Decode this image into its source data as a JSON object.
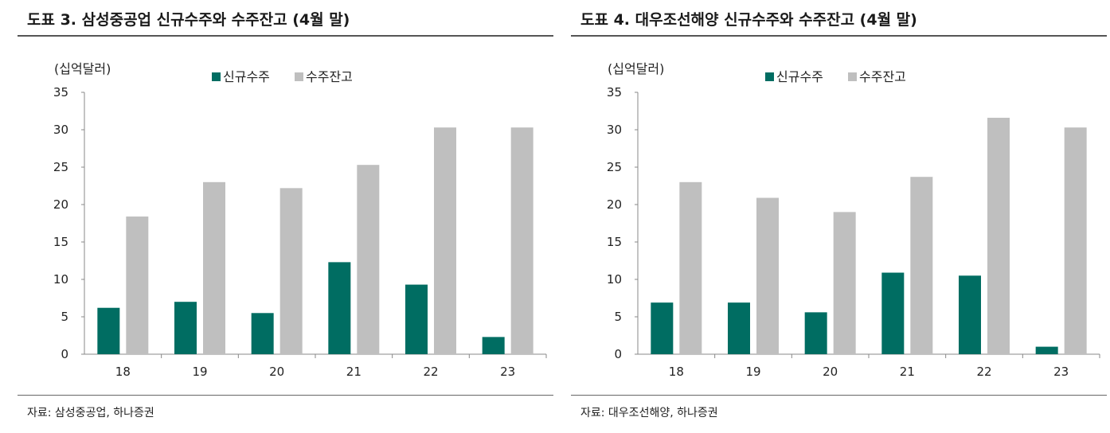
{
  "charts": [
    {
      "title": "도표 3. 삼성중공업 신규수주와 수주잔고 (4월 말)",
      "source": "자료: 삼성중공업, 하나증권",
      "chart_data": {
        "type": "bar",
        "unit_label": "(십억달러)",
        "categories": [
          "18",
          "19",
          "20",
          "21",
          "22",
          "23"
        ],
        "series": [
          {
            "name": "신규수주",
            "color": "#006D62",
            "values": [
              6.2,
              7.0,
              5.5,
              12.3,
              9.3,
              2.3
            ]
          },
          {
            "name": "수주잔고",
            "color": "#BFBFBF",
            "values": [
              18.4,
              23.0,
              22.2,
              25.3,
              30.3,
              30.3
            ]
          }
        ],
        "ylim": [
          0,
          35
        ],
        "yticks": [
          0,
          5,
          10,
          15,
          20,
          25,
          30,
          35
        ],
        "legend": "top"
      }
    },
    {
      "title": "도표 4. 대우조선해양 신규수주와 수주잔고 (4월 말)",
      "source": "자료: 대우조선해양, 하나증권",
      "chart_data": {
        "type": "bar",
        "unit_label": "(십억달러)",
        "categories": [
          "18",
          "19",
          "20",
          "21",
          "22",
          "23"
        ],
        "series": [
          {
            "name": "신규수주",
            "color": "#006D62",
            "values": [
              6.9,
              6.9,
              5.6,
              10.9,
              10.5,
              1.0
            ]
          },
          {
            "name": "수주잔고",
            "color": "#BFBFBF",
            "values": [
              23.0,
              20.9,
              19.0,
              23.7,
              31.6,
              30.3
            ]
          }
        ],
        "ylim": [
          0,
          35
        ],
        "yticks": [
          0,
          5,
          10,
          15,
          20,
          25,
          30,
          35
        ],
        "legend": "top"
      }
    }
  ]
}
